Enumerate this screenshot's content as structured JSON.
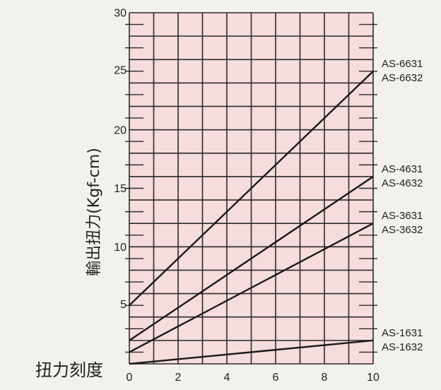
{
  "chart_data": {
    "type": "line",
    "xlabel": "扭力刻度",
    "ylabel": "輸出扭力(Kgf-cm)",
    "xlim": [
      0,
      10
    ],
    "ylim": [
      0,
      30
    ],
    "x_ticks": [
      "0",
      "2",
      "4",
      "6",
      "8",
      "10"
    ],
    "y_ticks": [
      "5",
      "10",
      "15",
      "20",
      "25",
      "30"
    ],
    "grid": true,
    "plot_background": "#f6dcdc",
    "line_color": "#1a1a1a",
    "series": [
      {
        "name": "AS-6631\nAS-6632",
        "labels": [
          "AS-6631",
          "AS-6632"
        ],
        "x": [
          0,
          10
        ],
        "y": [
          5,
          25
        ]
      },
      {
        "name": "AS-4631\nAS-4632",
        "labels": [
          "AS-4631",
          "AS-4632"
        ],
        "x": [
          0,
          10
        ],
        "y": [
          2,
          16
        ]
      },
      {
        "name": "AS-3631\nAS-3632",
        "labels": [
          "AS-3631",
          "AS-3632"
        ],
        "x": [
          0,
          10
        ],
        "y": [
          1,
          12
        ]
      },
      {
        "name": "AS-1631\nAS-1632",
        "labels": [
          "AS-1631",
          "AS-1632"
        ],
        "x": [
          0,
          10
        ],
        "y": [
          0,
          2
        ]
      }
    ]
  }
}
